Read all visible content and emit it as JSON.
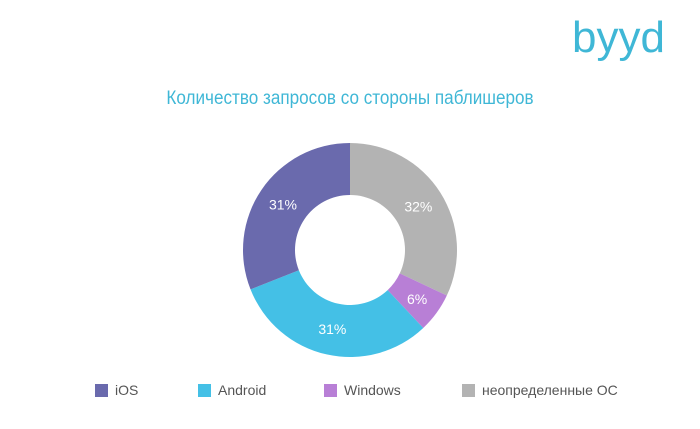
{
  "logo": {
    "text": "byyd",
    "color": "#3fb7d6"
  },
  "chart_data": {
    "type": "pie",
    "variant": "donut",
    "title": "Количество запросов со стороны паблишеров",
    "categories": [
      "iOS",
      "Android",
      "Windows",
      "неопределенные ОС"
    ],
    "values": [
      31,
      31,
      6,
      32
    ],
    "labels": [
      "31%",
      "31%",
      "6%",
      "32%"
    ],
    "colors": [
      "#6a6aad",
      "#44c0e6",
      "#b87fd6",
      "#b3b3b3"
    ],
    "legend_position": "bottom"
  }
}
